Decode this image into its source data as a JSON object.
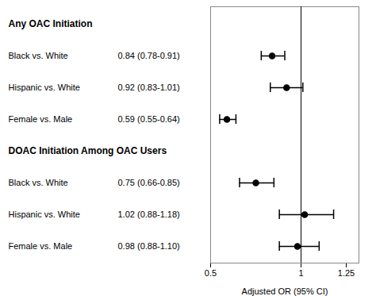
{
  "chart_data": {
    "type": "forest",
    "xlabel": "Adjusted OR (95% CI)",
    "xlim": [
      0.5,
      1.32
    ],
    "xticks": [
      0.5,
      1,
      1.25
    ],
    "reference_line": 1,
    "color": "#000000",
    "series": [
      {
        "name": "Any OAC Initiation",
        "categories": [
          "Black vs. White",
          "Hispanic vs. White",
          "Female vs. Male"
        ],
        "values": [
          0.84,
          0.92,
          0.59
        ],
        "lo": [
          0.78,
          0.83,
          0.55
        ],
        "hi": [
          0.91,
          1.01,
          0.64
        ],
        "value_labels": [
          "0.84 (0.78-0.91)",
          "0.92 (0.83-1.01)",
          "0.59 (0.55-0.64)"
        ]
      },
      {
        "name": "DOAC Initiation Among OAC Users",
        "categories": [
          "Black vs. White",
          "Hispanic vs. White",
          "Female vs. Male"
        ],
        "values": [
          0.75,
          1.02,
          0.98
        ],
        "lo": [
          0.66,
          0.88,
          0.88
        ],
        "hi": [
          0.85,
          1.18,
          1.1
        ],
        "value_labels": [
          "0.75 (0.66-0.85)",
          "1.02 (0.88-1.18)",
          "0.98 (0.88-1.10)"
        ]
      }
    ]
  }
}
